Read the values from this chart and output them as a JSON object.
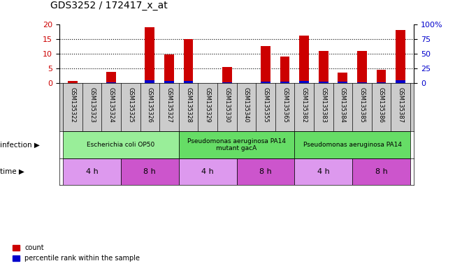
{
  "title": "GDS3252 / 172417_x_at",
  "samples": [
    "GSM135322",
    "GSM135323",
    "GSM135324",
    "GSM135325",
    "GSM135326",
    "GSM135327",
    "GSM135328",
    "GSM135329",
    "GSM135330",
    "GSM135340",
    "GSM135355",
    "GSM135365",
    "GSM135382",
    "GSM135383",
    "GSM135384",
    "GSM135385",
    "GSM135386",
    "GSM135387"
  ],
  "count_values": [
    0.7,
    0.0,
    3.7,
    0.0,
    19.0,
    9.7,
    15.0,
    0.0,
    5.5,
    0.0,
    12.5,
    9.0,
    16.2,
    11.0,
    3.5,
    11.0,
    4.5,
    18.0
  ],
  "percentile_values": [
    0.5,
    0.0,
    1.0,
    0.0,
    4.5,
    3.2,
    3.2,
    0.0,
    1.5,
    0.0,
    2.5,
    2.5,
    3.8,
    3.0,
    2.5,
    0.8,
    1.0,
    4.7
  ],
  "ylim_left": [
    0,
    20
  ],
  "ylim_right": [
    0,
    100
  ],
  "yticks_left": [
    0,
    5,
    10,
    15,
    20
  ],
  "yticks_right": [
    0,
    25,
    50,
    75,
    100
  ],
  "ytick_labels_right": [
    "0",
    "25",
    "50",
    "75",
    "100%"
  ],
  "bar_color": "#cc0000",
  "percentile_color": "#0000cc",
  "bar_width": 0.5,
  "infection_groups": [
    {
      "label": "Escherichia coli OP50",
      "start": 0,
      "end": 6,
      "color": "#99ee99"
    },
    {
      "label": "Pseudomonas aeruginosa PA14\nmutant gacA",
      "start": 6,
      "end": 12,
      "color": "#66dd66"
    },
    {
      "label": "Pseudomonas aeruginosa PA14",
      "start": 12,
      "end": 18,
      "color": "#66dd66"
    }
  ],
  "time_groups": [
    {
      "label": "4 h",
      "start": 0,
      "end": 3,
      "color": "#dd99ee"
    },
    {
      "label": "8 h",
      "start": 3,
      "end": 6,
      "color": "#cc55cc"
    },
    {
      "label": "4 h",
      "start": 6,
      "end": 9,
      "color": "#dd99ee"
    },
    {
      "label": "8 h",
      "start": 9,
      "end": 12,
      "color": "#cc55cc"
    },
    {
      "label": "4 h",
      "start": 12,
      "end": 15,
      "color": "#dd99ee"
    },
    {
      "label": "8 h",
      "start": 15,
      "end": 18,
      "color": "#cc55cc"
    }
  ],
  "background_color": "#ffffff",
  "tick_color_left": "#cc0000",
  "tick_color_right": "#0000cc",
  "infection_label": "infection",
  "time_label": "time",
  "legend_count": "count",
  "legend_percentile": "percentile rank within the sample",
  "title_fontsize": 10,
  "axis_fontsize": 8,
  "label_fontsize": 8,
  "sample_label_color": "#888888",
  "labels_bg_color": "#cccccc"
}
